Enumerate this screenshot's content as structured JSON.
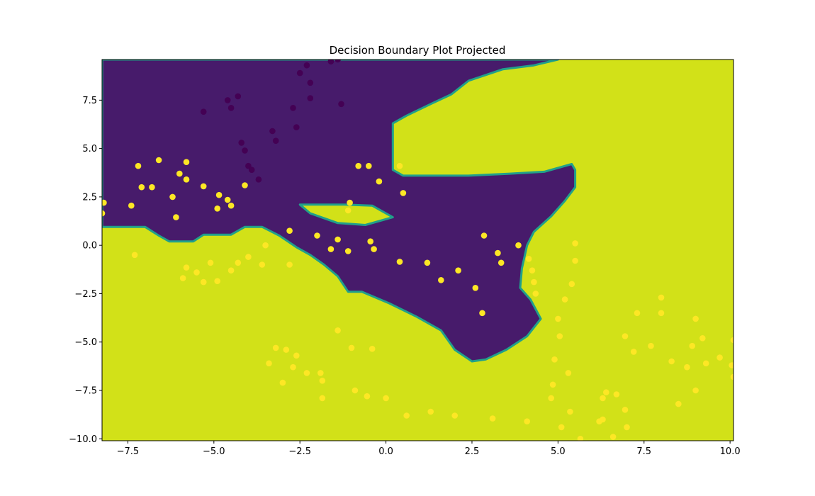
{
  "chart_data": {
    "type": "scatter",
    "title": "Decision Boundary Plot Projected",
    "xlabel": "",
    "ylabel": "",
    "xlim": [
      -8.25,
      10.1
    ],
    "ylim": [
      -10.1,
      9.6
    ],
    "x_ticks": [
      -7.5,
      -5.0,
      -2.5,
      0.0,
      2.5,
      5.0,
      7.5,
      10.0
    ],
    "x_tick_labels": [
      "−7.5",
      "−5.0",
      "−2.5",
      "0.0",
      "2.5",
      "5.0",
      "7.5",
      "10.0"
    ],
    "y_ticks": [
      -10.0,
      -7.5,
      -5.0,
      -2.5,
      0.0,
      2.5,
      5.0,
      7.5
    ],
    "y_tick_labels": [
      "−10.0",
      "−7.5",
      "−5.0",
      "−2.5",
      "0.0",
      "2.5",
      "5.0",
      "7.5"
    ],
    "grid": false,
    "colors": {
      "region_class_0": "#471b6b",
      "region_class_1": "#d2e118",
      "boundary": "#21a08a",
      "points_class_0": "#440154",
      "points_class_1": "#fde725"
    },
    "decision_regions": {
      "class_0_region": [
        [
          -8.25,
          9.6
        ],
        [
          -8.25,
          0.95
        ],
        [
          -7.0,
          0.95
        ],
        [
          -6.6,
          0.5
        ],
        [
          -6.3,
          0.2
        ],
        [
          -5.6,
          0.2
        ],
        [
          -5.3,
          0.55
        ],
        [
          -4.5,
          0.55
        ],
        [
          -4.1,
          0.95
        ],
        [
          -3.6,
          0.95
        ],
        [
          -3.1,
          0.5
        ],
        [
          -2.6,
          -0.1
        ],
        [
          -2.2,
          -0.5
        ],
        [
          -1.8,
          -1.0
        ],
        [
          -1.4,
          -1.6
        ],
        [
          -1.1,
          -2.4
        ],
        [
          -0.7,
          -2.4
        ],
        [
          0.1,
          -3.0
        ],
        [
          0.9,
          -3.7
        ],
        [
          1.6,
          -4.4
        ],
        [
          2.0,
          -5.4
        ],
        [
          2.5,
          -6.0
        ],
        [
          2.9,
          -5.9
        ],
        [
          3.5,
          -5.4
        ],
        [
          4.1,
          -4.7
        ],
        [
          4.5,
          -3.8
        ],
        [
          4.2,
          -2.8
        ],
        [
          3.9,
          -2.2
        ],
        [
          3.95,
          -1.2
        ],
        [
          4.1,
          0.0
        ],
        [
          4.3,
          0.7
        ],
        [
          4.8,
          1.5
        ],
        [
          5.2,
          2.3
        ],
        [
          5.5,
          3.0
        ],
        [
          5.5,
          3.9
        ],
        [
          5.4,
          4.2
        ],
        [
          4.6,
          3.8
        ],
        [
          3.6,
          3.7
        ],
        [
          2.4,
          3.6
        ],
        [
          1.1,
          3.6
        ],
        [
          0.5,
          3.6
        ],
        [
          0.2,
          3.9
        ],
        [
          0.2,
          6.3
        ],
        [
          0.6,
          6.7
        ],
        [
          1.3,
          7.3
        ],
        [
          1.9,
          7.8
        ],
        [
          2.4,
          8.5
        ],
        [
          3.4,
          9.1
        ],
        [
          4.3,
          9.3
        ],
        [
          5.0,
          9.6
        ]
      ],
      "class_1_islands": [
        [
          [
            -2.5,
            2.1
          ],
          [
            -2.2,
            1.65
          ],
          [
            -1.4,
            1.15
          ],
          [
            -0.6,
            1.05
          ],
          [
            0.2,
            1.45
          ],
          [
            -0.4,
            2.05
          ],
          [
            -1.2,
            2.1
          ]
        ]
      ]
    },
    "series": [
      {
        "class": 0,
        "points": [
          [
            -5.3,
            6.9
          ],
          [
            -4.6,
            7.5
          ],
          [
            -4.5,
            7.1
          ],
          [
            -4.3,
            7.7
          ],
          [
            -4.2,
            5.3
          ],
          [
            -4.1,
            4.9
          ],
          [
            -4.0,
            4.1
          ],
          [
            -3.9,
            3.9
          ],
          [
            -3.7,
            3.4
          ],
          [
            -3.3,
            5.9
          ],
          [
            -3.2,
            5.4
          ],
          [
            -2.7,
            7.1
          ],
          [
            -2.6,
            6.1
          ],
          [
            -2.5,
            8.9
          ],
          [
            -2.3,
            9.3
          ],
          [
            -2.2,
            7.6
          ],
          [
            -2.2,
            8.4
          ],
          [
            -1.6,
            9.5
          ],
          [
            -1.4,
            9.6
          ],
          [
            -1.3,
            7.3
          ]
        ]
      },
      {
        "class": 1,
        "points": [
          [
            -8.2,
            2.2
          ],
          [
            -8.25,
            1.65
          ],
          [
            -7.2,
            4.1
          ],
          [
            -7.1,
            3.0
          ],
          [
            -6.8,
            3.0
          ],
          [
            -6.6,
            4.4
          ],
          [
            -6.2,
            2.5
          ],
          [
            -6.1,
            1.45
          ],
          [
            -6.0,
            3.7
          ],
          [
            -5.8,
            3.4
          ],
          [
            -5.8,
            4.3
          ],
          [
            -5.3,
            3.05
          ],
          [
            -4.9,
            1.9
          ],
          [
            -4.85,
            2.6
          ],
          [
            -4.6,
            2.35
          ],
          [
            -4.5,
            2.05
          ],
          [
            -4.1,
            3.1
          ],
          [
            -7.4,
            2.05
          ],
          [
            -2.8,
            0.75
          ],
          [
            -2.0,
            0.5
          ],
          [
            -1.6,
            -0.2
          ],
          [
            -1.4,
            0.3
          ],
          [
            -1.1,
            -0.3
          ],
          [
            -1.1,
            1.8
          ],
          [
            -1.05,
            2.2
          ],
          [
            -0.8,
            4.1
          ],
          [
            -0.5,
            4.1
          ],
          [
            -0.2,
            3.3
          ],
          [
            -0.45,
            0.2
          ],
          [
            -0.35,
            -0.2
          ],
          [
            0.4,
            4.1
          ],
          [
            0.5,
            2.7
          ],
          [
            0.4,
            -0.85
          ],
          [
            1.2,
            -0.9
          ],
          [
            1.6,
            -1.8
          ],
          [
            2.1,
            -1.3
          ],
          [
            2.6,
            -2.2
          ],
          [
            2.8,
            -3.5
          ],
          [
            2.85,
            0.5
          ],
          [
            3.25,
            -0.4
          ],
          [
            3.35,
            -0.9
          ],
          [
            3.85,
            0.0
          ],
          [
            -7.3,
            -0.5
          ],
          [
            -5.9,
            -1.7
          ],
          [
            -5.8,
            -1.15
          ],
          [
            -5.5,
            -1.4
          ],
          [
            -5.3,
            -1.9
          ],
          [
            -5.1,
            -0.9
          ],
          [
            -4.9,
            -1.85
          ],
          [
            -4.5,
            -1.3
          ],
          [
            -4.3,
            -0.9
          ],
          [
            -4.0,
            -0.6
          ],
          [
            -3.5,
            0.0
          ],
          [
            -3.6,
            -1.0
          ],
          [
            -2.8,
            -1.0
          ],
          [
            -3.2,
            -5.3
          ],
          [
            -2.9,
            -5.4
          ],
          [
            -2.7,
            -6.3
          ],
          [
            -2.6,
            -5.7
          ],
          [
            -3.0,
            -7.1
          ],
          [
            -3.4,
            -6.1
          ],
          [
            -2.3,
            -6.6
          ],
          [
            -1.9,
            -6.6
          ],
          [
            -1.85,
            -7.0
          ],
          [
            -1.85,
            -7.9
          ],
          [
            -1.4,
            -4.4
          ],
          [
            -1.0,
            -5.3
          ],
          [
            -0.9,
            -7.5
          ],
          [
            -0.55,
            -7.8
          ],
          [
            -0.4,
            -5.35
          ],
          [
            0.0,
            -7.9
          ],
          [
            0.6,
            -8.8
          ],
          [
            1.3,
            -8.6
          ],
          [
            2.0,
            -8.8
          ],
          [
            3.1,
            -8.95
          ],
          [
            4.1,
            -9.1
          ],
          [
            4.15,
            -0.7
          ],
          [
            4.25,
            -1.3
          ],
          [
            4.3,
            -1.9
          ],
          [
            4.35,
            -2.5
          ],
          [
            4.8,
            -7.9
          ],
          [
            4.85,
            -7.2
          ],
          [
            4.9,
            -5.9
          ],
          [
            5.0,
            -3.8
          ],
          [
            5.05,
            -4.7
          ],
          [
            5.1,
            -9.4
          ],
          [
            5.2,
            -2.8
          ],
          [
            5.3,
            -6.6
          ],
          [
            5.35,
            -8.6
          ],
          [
            5.4,
            -2.0
          ],
          [
            5.5,
            0.1
          ],
          [
            5.5,
            -0.8
          ],
          [
            5.65,
            -10.0
          ],
          [
            6.2,
            -9.1
          ],
          [
            6.3,
            -9.0
          ],
          [
            6.3,
            -7.9
          ],
          [
            6.4,
            -7.6
          ],
          [
            6.6,
            -9.9
          ],
          [
            6.7,
            -7.7
          ],
          [
            6.95,
            -4.7
          ],
          [
            6.95,
            -8.5
          ],
          [
            7.0,
            -9.4
          ],
          [
            7.2,
            -5.5
          ],
          [
            7.3,
            -3.5
          ],
          [
            7.7,
            -5.2
          ],
          [
            8.0,
            -2.7
          ],
          [
            8.0,
            -3.5
          ],
          [
            8.3,
            -6.0
          ],
          [
            8.5,
            -8.2
          ],
          [
            8.75,
            -6.3
          ],
          [
            8.9,
            -5.2
          ],
          [
            9.0,
            -3.8
          ],
          [
            9.0,
            -7.5
          ],
          [
            9.2,
            -4.8
          ],
          [
            9.3,
            -6.1
          ],
          [
            9.7,
            -5.8
          ],
          [
            10.05,
            -6.2
          ],
          [
            10.1,
            -4.9
          ],
          [
            10.1,
            -6.8
          ]
        ]
      }
    ]
  }
}
